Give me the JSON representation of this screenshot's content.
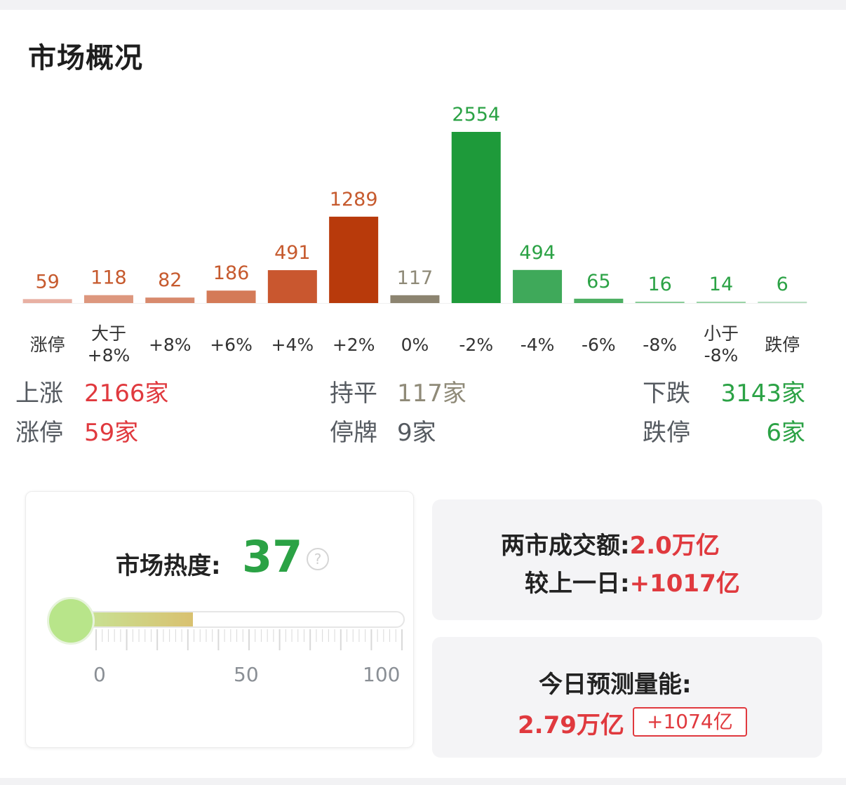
{
  "header": {
    "title": "市场概况"
  },
  "chart_data": {
    "type": "bar",
    "categories": [
      "涨停",
      "大于\n+8%",
      "+8%",
      "+6%",
      "+4%",
      "+2%",
      "0%",
      "-2%",
      "-4%",
      "-6%",
      "-8%",
      "小于\n-8%",
      "跌停"
    ],
    "values": [
      59,
      118,
      82,
      186,
      491,
      1289,
      117,
      2554,
      494,
      65,
      16,
      14,
      6
    ],
    "value_labels": [
      "59",
      "118",
      "82",
      "186",
      "491",
      "1289",
      "117",
      "2554",
      "494",
      "65",
      "16",
      "14",
      "6"
    ],
    "bar_colors": [
      "#e8b0a3",
      "#dd977e",
      "#d88a6d",
      "#d47a57",
      "#c9572f",
      "#b83a0b",
      "#8c8470",
      "#1e9a3a",
      "#3fa95a",
      "#4caf62",
      "#88cc97",
      "#99d3a6",
      "#b8dec2"
    ],
    "label_colors": [
      "#c65a2e",
      "#c65a2e",
      "#c65a2e",
      "#c65a2e",
      "#c65a2e",
      "#c65a2e",
      "#8f8a78",
      "#2ba245",
      "#2ba245",
      "#2ba245",
      "#2ba245",
      "#2ba245",
      "#2ba245"
    ],
    "grid": false,
    "legend": "none"
  },
  "stats": {
    "up_label": "上涨",
    "up_value": "2166家",
    "flat_label": "持平",
    "flat_value": "117家",
    "down_label": "下跌",
    "down_value": "3143家",
    "limit_up_label": "涨停",
    "limit_up_value": "59家",
    "suspended_label": "停牌",
    "suspended_value": "9家",
    "limit_down_label": "跌停",
    "limit_down_value": "6家"
  },
  "heat": {
    "label": "市场热度:",
    "value": "37",
    "level": 37,
    "help_icon": "help-circle-icon",
    "scale": [
      "0",
      "50",
      "100"
    ],
    "accent": "#2ba245"
  },
  "turnover": {
    "label": "两市成交额:",
    "value": "2.0万亿",
    "change_label": "较上一日:",
    "change_value": "+1017亿"
  },
  "forecast": {
    "label": "今日预测量能:",
    "value": "2.79万亿",
    "badge": "+1074亿"
  },
  "colors": {
    "up": "#e0393e",
    "down": "#2ba245",
    "flat": "#8f8a78"
  }
}
